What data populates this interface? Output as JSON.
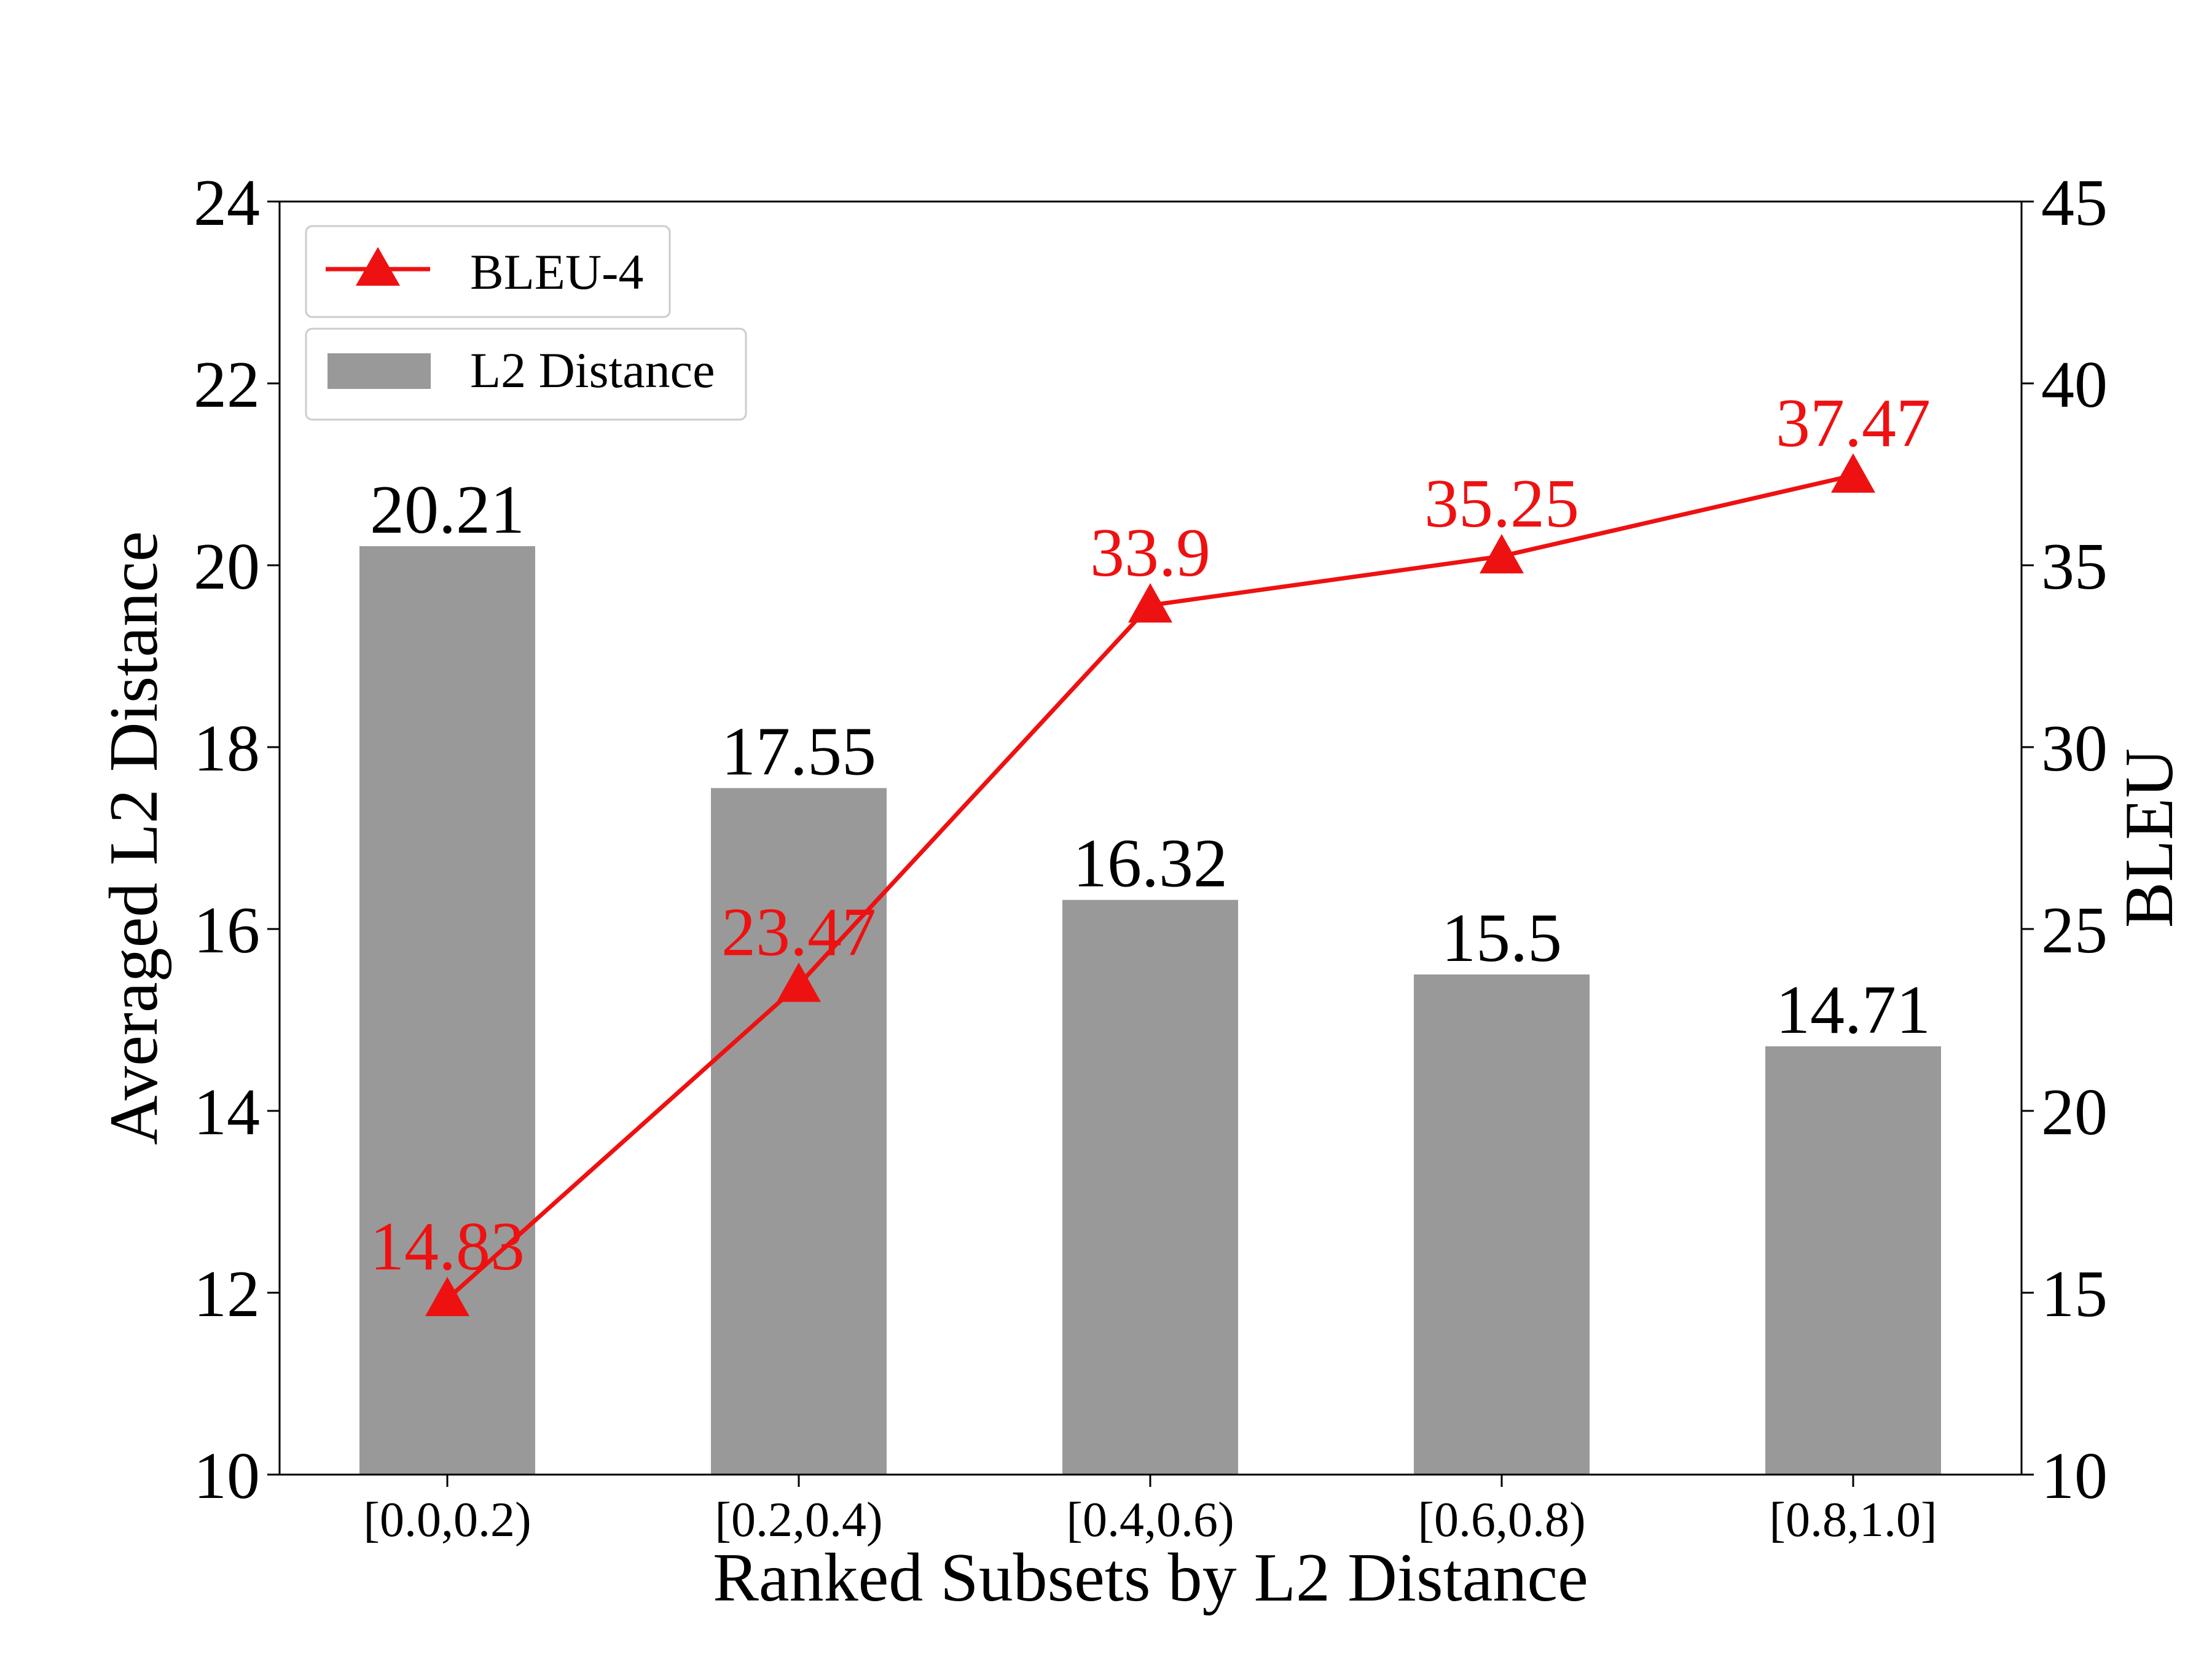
{
  "chart_data": {
    "type": "bar+line",
    "categories": [
      "[0.0,0.2)",
      "[0.2,0.4)",
      "[0.4,0.6)",
      "[0.6,0.8)",
      "[0.8,1.0]"
    ],
    "series": [
      {
        "name": "L2 Distance",
        "type": "bar",
        "axis": "left",
        "color": "#999999",
        "values": [
          20.21,
          17.55,
          16.32,
          15.5,
          14.71
        ],
        "labels": [
          "20.21",
          "17.55",
          "16.32",
          "15.5",
          "14.71"
        ]
      },
      {
        "name": "BLEU-4",
        "type": "line",
        "axis": "right",
        "color": "#ee1111",
        "marker": "triangle",
        "values": [
          14.83,
          23.47,
          33.9,
          35.25,
          37.47
        ],
        "labels": [
          "14.83",
          "23.47",
          "33.9",
          "35.25",
          "37.47"
        ]
      }
    ],
    "xlabel": "Ranked Subsets by L2 Distance",
    "ylabel_left": "Averaged L2 Distance",
    "ylabel_right": "BLEU",
    "ylim_left": [
      10,
      24
    ],
    "yticks_left": [
      "10",
      "12",
      "14",
      "16",
      "18",
      "20",
      "22",
      "24"
    ],
    "ylim_right": [
      10,
      45
    ],
    "yticks_right": [
      "10",
      "15",
      "20",
      "25",
      "30",
      "35",
      "40",
      "45"
    ],
    "legend_position": "top-left",
    "grid": false
  }
}
